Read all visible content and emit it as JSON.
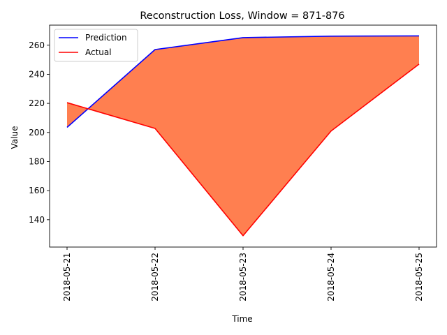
{
  "chart_data": {
    "type": "area",
    "title": "Reconstruction Loss, Window = 871-876",
    "xlabel": "Time",
    "ylabel": "Value",
    "categories": [
      "2018-05-21",
      "2018-05-22",
      "2018-05-23",
      "2018-05-24",
      "2018-05-25"
    ],
    "yticks": [
      140,
      160,
      180,
      200,
      220,
      240,
      260
    ],
    "ylim": [
      121.2,
      273.8
    ],
    "grid": false,
    "legend_position": "top-left",
    "fill_color": "#ff7f50",
    "series": [
      {
        "name": "Prediction",
        "color": "#0000ff",
        "values": [
          203.5,
          257.0,
          265.2,
          266.2,
          266.4
        ]
      },
      {
        "name": "Actual",
        "color": "#ff0000",
        "values": [
          220.5,
          202.8,
          129.0,
          201.0,
          247.0
        ]
      }
    ]
  }
}
